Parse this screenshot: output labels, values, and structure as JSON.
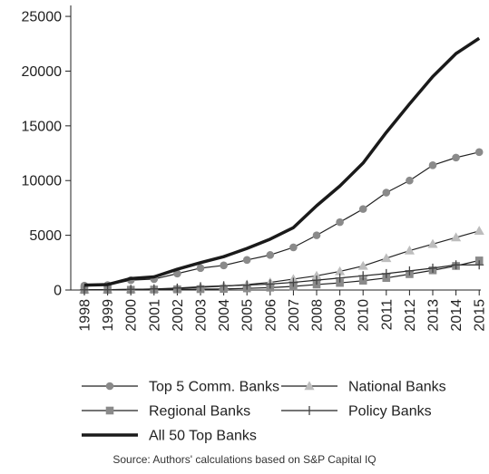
{
  "chart_data": {
    "type": "line",
    "x": [
      "1998",
      "1999",
      "2000",
      "2001",
      "2002",
      "2003",
      "2004",
      "2005",
      "2006",
      "2007",
      "2008",
      "2009",
      "2010",
      "2011",
      "2012",
      "2013",
      "2014",
      "2015"
    ],
    "ylim": [
      0,
      26000
    ],
    "yticks": [
      0,
      5000,
      10000,
      15000,
      20000,
      25000
    ],
    "ytick_labels": [
      "0",
      "5000",
      "10000",
      "15000",
      "20000",
      "25000"
    ],
    "title": "",
    "xlabel": "",
    "ylabel": "",
    "grid": false,
    "legend_position": "bottom",
    "series": [
      {
        "name": "Top 5 Comm. Banks",
        "marker": "circle",
        "color": "#8a8a8a",
        "width": 1.2,
        "values": [
          400,
          450,
          900,
          1000,
          1500,
          2000,
          2250,
          2750,
          3200,
          3900,
          5000,
          6200,
          7400,
          8900,
          10000,
          11400,
          12100,
          12600
        ]
      },
      {
        "name": "National Banks",
        "marker": "triangle",
        "color": "#bdbdbd",
        "width": 1.2,
        "values": [
          20,
          30,
          60,
          90,
          150,
          250,
          350,
          500,
          700,
          1000,
          1300,
          1700,
          2200,
          2900,
          3600,
          4200,
          4800,
          5400
        ]
      },
      {
        "name": "Regional Banks",
        "marker": "square",
        "color": "#8a8a8a",
        "width": 1.2,
        "values": [
          10,
          15,
          25,
          40,
          60,
          80,
          100,
          150,
          220,
          330,
          500,
          650,
          850,
          1100,
          1450,
          1800,
          2200,
          2700
        ]
      },
      {
        "name": "Policy Banks",
        "marker": "plus",
        "color": "#444444",
        "width": 1.2,
        "values": [
          20,
          30,
          50,
          100,
          180,
          300,
          380,
          450,
          550,
          700,
          900,
          1100,
          1300,
          1500,
          1750,
          2000,
          2300,
          2300
        ]
      },
      {
        "name": "All 50 Top Banks",
        "marker": "none",
        "color": "#1a1a1a",
        "width": 3.5,
        "values": [
          450,
          500,
          1050,
          1200,
          1900,
          2500,
          3050,
          3800,
          4650,
          5700,
          7700,
          9500,
          11600,
          14400,
          17000,
          19500,
          21600,
          23000
        ]
      }
    ]
  },
  "source_note": "Source: Authors' calculations based on S&P Capital IQ"
}
